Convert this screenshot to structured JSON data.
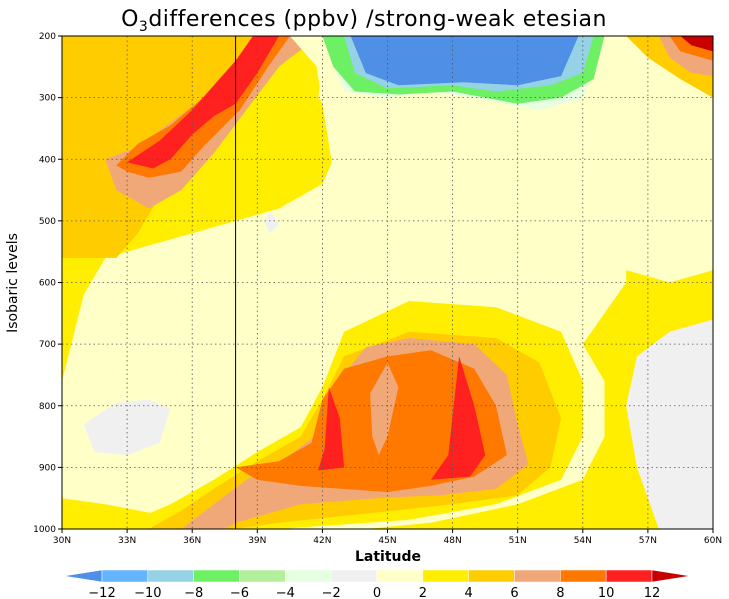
{
  "chart_data": {
    "type": "heatmap",
    "title_main": "O",
    "title_sub": "3",
    "title_rest": "differences (ppbv) /strong-weak etesian",
    "xlabel": "Latitude",
    "ylabel": "Isobaric levels",
    "x_ticks": [
      "30N",
      "33N",
      "36N",
      "39N",
      "42N",
      "45N",
      "48N",
      "51N",
      "54N",
      "57N",
      "60N"
    ],
    "x_values": [
      30,
      33,
      36,
      39,
      42,
      45,
      48,
      51,
      54,
      57,
      60
    ],
    "y_ticks": [
      "200",
      "300",
      "400",
      "500",
      "600",
      "700",
      "800",
      "900",
      "1000"
    ],
    "y_values": [
      200,
      300,
      400,
      500,
      600,
      700,
      800,
      900,
      1000
    ],
    "xlim": [
      30,
      60
    ],
    "ylim": [
      1000,
      200
    ],
    "grid": true,
    "vertical_line_at": 38,
    "colorbar": {
      "levels": [
        -12,
        -10,
        -8,
        -6,
        -4,
        -2,
        0,
        2,
        4,
        6,
        8,
        10,
        12
      ],
      "labels": [
        "-12",
        "-10",
        "-8",
        "-6",
        "-4",
        "-2",
        "0",
        "2",
        "4",
        "6",
        "8",
        "10",
        "12"
      ],
      "colors": [
        "#4f8fe6",
        "#64b4ff",
        "#96d2e6",
        "#6ef064",
        "#b4f09b",
        "#e6ffe1",
        "#f0f0f0",
        "#ffffc8",
        "#ffee00",
        "#ffcc00",
        "#f0a878",
        "#ff7800",
        "#ff2020",
        "#c80000"
      ]
    },
    "regions": [
      {
        "value": 3,
        "points": [
          [
            30,
            1000
          ],
          [
            30,
            200
          ],
          [
            41.5,
            200
          ],
          [
            42.5,
            420
          ],
          [
            43.5,
            550
          ],
          [
            48,
            510
          ],
          [
            52,
            520
          ],
          [
            55,
            570
          ],
          [
            58,
            600
          ],
          [
            60,
            580
          ],
          [
            60,
            1000
          ]
        ]
      },
      {
        "value": 1,
        "points": [
          [
            30,
            760
          ],
          [
            31,
            620
          ],
          [
            32,
            560
          ],
          [
            34,
            540
          ],
          [
            36,
            520
          ],
          [
            38,
            500
          ],
          [
            40,
            480
          ],
          [
            42,
            440
          ],
          [
            43,
            360
          ],
          [
            42,
            260
          ],
          [
            43,
            200
          ],
          [
            55,
            200
          ],
          [
            57,
            300
          ],
          [
            58,
            370
          ],
          [
            57,
            470
          ],
          [
            56,
            530
          ],
          [
            56,
            600
          ],
          [
            55,
            650
          ],
          [
            54,
            700
          ],
          [
            55,
            760
          ],
          [
            55,
            850
          ],
          [
            54,
            920
          ],
          [
            51,
            960
          ],
          [
            47,
            990
          ],
          [
            44,
            1000
          ],
          [
            39,
            1000
          ],
          [
            35,
            980
          ],
          [
            32,
            960
          ],
          [
            30,
            950
          ]
        ]
      },
      {
        "value": -1,
        "points": [
          [
            57.5,
            1000
          ],
          [
            56.5,
            900
          ],
          [
            56,
            800
          ],
          [
            56.5,
            720
          ],
          [
            58,
            680
          ],
          [
            60,
            660
          ],
          [
            60,
            1000
          ]
        ]
      },
      {
        "value": -1,
        "points": [
          [
            31,
            830
          ],
          [
            32.5,
            795
          ],
          [
            34,
            790
          ],
          [
            35,
            805
          ],
          [
            34.5,
            860
          ],
          [
            33,
            880
          ],
          [
            31.5,
            875
          ]
        ]
      },
      {
        "value": 3,
        "points": [
          [
            30,
            980
          ],
          [
            33,
            990
          ],
          [
            35,
            960
          ],
          [
            37,
            920
          ],
          [
            39,
            875
          ],
          [
            41,
            835
          ],
          [
            42,
            770
          ],
          [
            43,
            680
          ],
          [
            46,
            630
          ],
          [
            50,
            640
          ],
          [
            53,
            680
          ],
          [
            54,
            760
          ],
          [
            54,
            850
          ],
          [
            53,
            920
          ],
          [
            50,
            960
          ],
          [
            46,
            985
          ],
          [
            40,
            1000
          ],
          [
            30,
            1000
          ]
        ]
      },
      {
        "value": 5,
        "points": [
          [
            34,
            1000
          ],
          [
            35.5,
            970
          ],
          [
            37,
            935
          ],
          [
            39,
            890
          ],
          [
            41,
            850
          ],
          [
            42,
            790
          ],
          [
            43,
            720
          ],
          [
            46,
            680
          ],
          [
            50,
            690
          ],
          [
            52,
            730
          ],
          [
            53,
            820
          ],
          [
            52.5,
            900
          ],
          [
            51,
            945
          ],
          [
            48,
            960
          ],
          [
            44,
            975
          ],
          [
            40,
            990
          ],
          [
            38,
            1000
          ]
        ]
      },
      {
        "value": 7,
        "points": [
          [
            35.5,
            1000
          ],
          [
            37,
            960
          ],
          [
            38.5,
            920
          ],
          [
            40.5,
            880
          ],
          [
            42,
            840
          ],
          [
            42.5,
            770
          ],
          [
            44,
            705
          ],
          [
            46,
            690
          ],
          [
            49,
            700
          ],
          [
            50.5,
            750
          ],
          [
            51,
            830
          ],
          [
            51.5,
            895
          ],
          [
            50,
            935
          ],
          [
            47.5,
            945
          ],
          [
            44.5,
            950
          ],
          [
            41,
            960
          ],
          [
            38,
            990
          ],
          [
            37.5,
            1000
          ]
        ]
      },
      {
        "value": 9,
        "points": [
          [
            38,
            900
          ],
          [
            40,
            890
          ],
          [
            41.5,
            860
          ],
          [
            42,
            790
          ],
          [
            43,
            740
          ],
          [
            45,
            720
          ],
          [
            47,
            710
          ],
          [
            49,
            740
          ],
          [
            50,
            800
          ],
          [
            50.5,
            880
          ],
          [
            49,
            915
          ],
          [
            47,
            930
          ],
          [
            45,
            940
          ],
          [
            41,
            930
          ],
          [
            39,
            920
          ]
        ]
      },
      {
        "value": 11,
        "points": [
          [
            41.8,
            905
          ],
          [
            42.1,
            870
          ],
          [
            42.3,
            770
          ],
          [
            42.8,
            820
          ],
          [
            43,
            900
          ]
        ]
      },
      {
        "value": 11,
        "points": [
          [
            47,
            920
          ],
          [
            47.8,
            880
          ],
          [
            48.3,
            720
          ],
          [
            49,
            800
          ],
          [
            49.5,
            880
          ],
          [
            48.8,
            915
          ]
        ]
      },
      {
        "value": 7,
        "points": [
          [
            44.2,
            780
          ],
          [
            45,
            730
          ],
          [
            45.5,
            770
          ],
          [
            45,
            850
          ],
          [
            44.6,
            880
          ],
          [
            44.3,
            850
          ]
        ]
      },
      {
        "value": 5,
        "points": [
          [
            30,
            330
          ],
          [
            30,
            200
          ],
          [
            42,
            200
          ],
          [
            39.5,
            260
          ],
          [
            37.5,
            330
          ],
          [
            36,
            400
          ],
          [
            34.5,
            460
          ],
          [
            33.5,
            520
          ],
          [
            32.5,
            560
          ],
          [
            30,
            560
          ]
        ]
      },
      {
        "value": 7,
        "points": [
          [
            32,
            400
          ],
          [
            33.5,
            380
          ],
          [
            35,
            340
          ],
          [
            37,
            290
          ],
          [
            38.5,
            250
          ],
          [
            40,
            200
          ],
          [
            41.8,
            200
          ],
          [
            40,
            250
          ],
          [
            38.5,
            320
          ],
          [
            37,
            390
          ],
          [
            35.5,
            450
          ],
          [
            34,
            480
          ],
          [
            32.5,
            450
          ]
        ]
      },
      {
        "value": 9,
        "points": [
          [
            32.5,
            410
          ],
          [
            33.5,
            375
          ],
          [
            35,
            345
          ],
          [
            36.5,
            300
          ],
          [
            37.8,
            270
          ],
          [
            38.5,
            230
          ],
          [
            39.5,
            200
          ],
          [
            40.5,
            200
          ],
          [
            39.5,
            250
          ],
          [
            38.2,
            320
          ],
          [
            36.5,
            380
          ],
          [
            35.5,
            420
          ],
          [
            34,
            430
          ],
          [
            33,
            420
          ]
        ]
      },
      {
        "value": 11,
        "points": [
          [
            33,
            405
          ],
          [
            34.5,
            370
          ],
          [
            36,
            320
          ],
          [
            37,
            280
          ],
          [
            38,
            240
          ],
          [
            38.8,
            200
          ],
          [
            40,
            200
          ],
          [
            39,
            260
          ],
          [
            38,
            310
          ],
          [
            37,
            330
          ],
          [
            36,
            360
          ],
          [
            35,
            400
          ],
          [
            34.2,
            415
          ]
        ]
      },
      {
        "value": 1,
        "points": [
          [
            40.5,
            200
          ],
          [
            42,
            260
          ],
          [
            41.8,
            300
          ],
          [
            43,
            350
          ],
          [
            44,
            340
          ],
          [
            45.5,
            320
          ],
          [
            47,
            300
          ],
          [
            51,
            330
          ],
          [
            53.5,
            340
          ],
          [
            55,
            320
          ],
          [
            56,
            260
          ],
          [
            57,
            200
          ]
        ]
      },
      {
        "value": -3,
        "points": [
          [
            42,
            200
          ],
          [
            43,
            290
          ],
          [
            45,
            300
          ],
          [
            47,
            290
          ],
          [
            49,
            300
          ],
          [
            52,
            320
          ],
          [
            54,
            300
          ],
          [
            55,
            200
          ]
        ]
      },
      {
        "value": -7,
        "points": [
          [
            42,
            200
          ],
          [
            42.5,
            250
          ],
          [
            43.5,
            290
          ],
          [
            45.5,
            295
          ],
          [
            48,
            290
          ],
          [
            51,
            310
          ],
          [
            53,
            300
          ],
          [
            54.5,
            270
          ],
          [
            55,
            200
          ]
        ]
      },
      {
        "value": -9,
        "points": [
          [
            43,
            200
          ],
          [
            43.5,
            260
          ],
          [
            45,
            285
          ],
          [
            48,
            280
          ],
          [
            50,
            290
          ],
          [
            52.5,
            280
          ],
          [
            54,
            260
          ],
          [
            54.5,
            200
          ]
        ]
      },
      {
        "value": -13,
        "points": [
          [
            43.3,
            200
          ],
          [
            44,
            260
          ],
          [
            45.5,
            280
          ],
          [
            48.5,
            275
          ],
          [
            51,
            280
          ],
          [
            53,
            265
          ],
          [
            53.8,
            200
          ]
        ]
      },
      {
        "value": -1,
        "points": [
          [
            39.3,
            500
          ],
          [
            39.6,
            485
          ],
          [
            40,
            505
          ],
          [
            39.6,
            520
          ]
        ]
      },
      {
        "value": 5,
        "points": [
          [
            56,
            200
          ],
          [
            57,
            235
          ],
          [
            58.5,
            270
          ],
          [
            60,
            300
          ],
          [
            60,
            200
          ]
        ]
      },
      {
        "value": 7,
        "points": [
          [
            57.5,
            200
          ],
          [
            58,
            235
          ],
          [
            59,
            260
          ],
          [
            60,
            265
          ],
          [
            60,
            200
          ]
        ]
      },
      {
        "value": 9,
        "points": [
          [
            58,
            200
          ],
          [
            58.5,
            225
          ],
          [
            60,
            240
          ],
          [
            60,
            200
          ]
        ]
      },
      {
        "value": 13,
        "points": [
          [
            58.5,
            200
          ],
          [
            59,
            215
          ],
          [
            60,
            225
          ],
          [
            60,
            200
          ]
        ]
      }
    ]
  }
}
